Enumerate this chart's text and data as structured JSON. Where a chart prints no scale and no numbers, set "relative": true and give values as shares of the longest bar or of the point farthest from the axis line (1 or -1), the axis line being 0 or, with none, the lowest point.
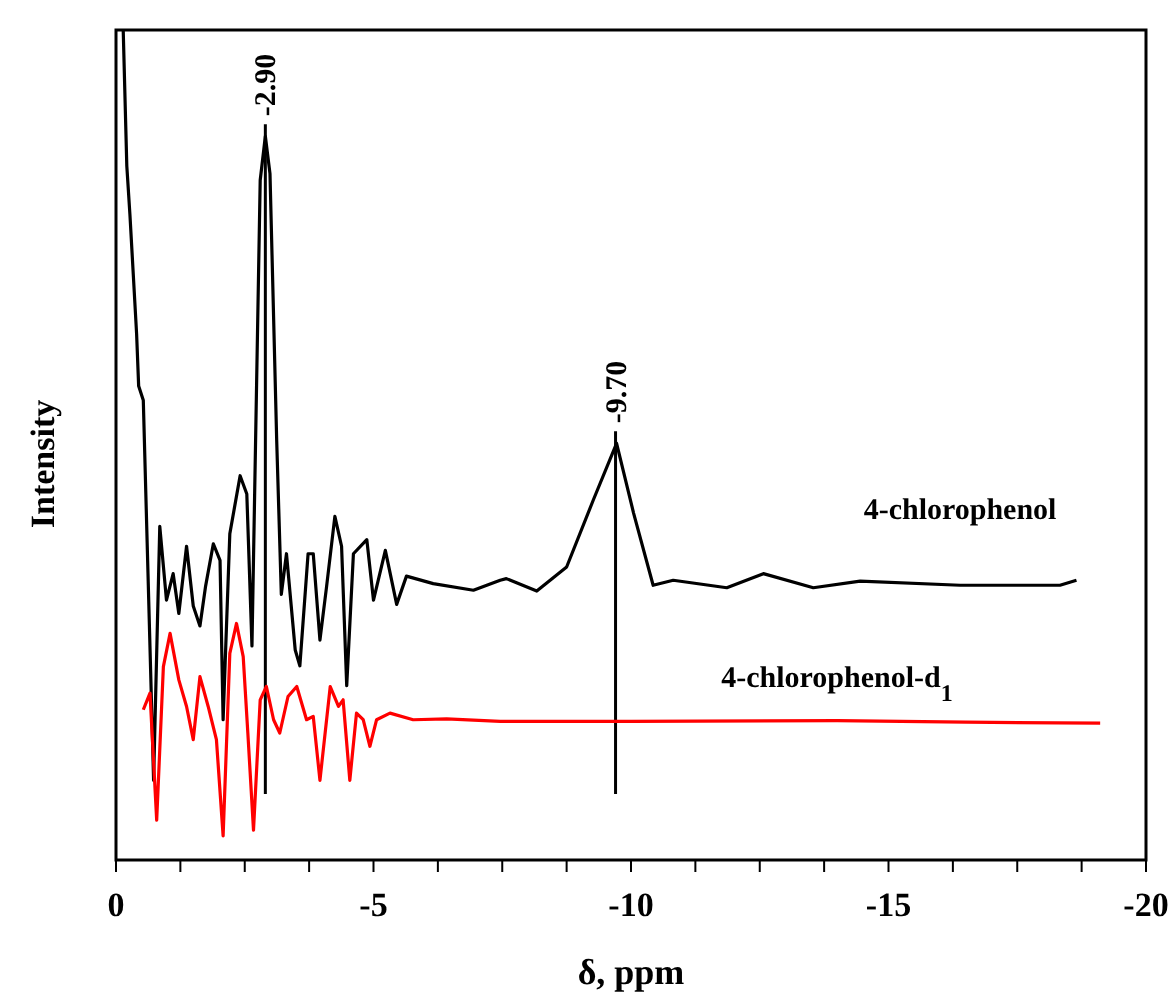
{
  "chart_data": {
    "type": "line",
    "xlabel": "δ, ppm",
    "ylabel": "Intensity",
    "relative": true,
    "xlim": [
      0,
      -20
    ],
    "xticks": [
      0,
      {
        "value": -1.25,
        "label": null
      },
      {
        "value": -2.5,
        "label": null
      },
      {
        "value": -3.75,
        "label": null
      },
      -5,
      {
        "value": -6.25,
        "label": null
      },
      {
        "value": -7.5,
        "label": null
      },
      {
        "value": -8.75,
        "label": null
      },
      -10,
      {
        "value": -11.25,
        "label": null
      },
      {
        "value": -12.5,
        "label": null
      },
      {
        "value": -13.75,
        "label": null
      },
      -15,
      {
        "value": -16.25,
        "label": null
      },
      {
        "value": -17.5,
        "label": null
      },
      {
        "value": -18.75,
        "label": null
      },
      -20
    ],
    "ref_lines": [
      {
        "axis": "x",
        "value": -2.9,
        "label": "-2.90",
        "color": "#000000"
      },
      {
        "axis": "x",
        "value": -9.7,
        "label": "-9.70",
        "color": "#000000"
      }
    ],
    "series": [
      {
        "name": "4-chlorophenol",
        "color": "#000000",
        "x": [
          -0.14,
          -0.21,
          -0.27,
          -0.4,
          -0.44,
          -0.53,
          -0.73,
          -0.85,
          -0.98,
          -1.11,
          -1.22,
          -1.37,
          -1.5,
          -1.63,
          -1.74,
          -1.89,
          -2.02,
          -2.08,
          -2.21,
          -2.41,
          -2.54,
          -2.64,
          -2.8,
          -2.9,
          -2.99,
          -3.12,
          -3.21,
          -3.31,
          -3.48,
          -3.57,
          -3.73,
          -3.83,
          -3.96,
          -4.09,
          -4.25,
          -4.38,
          -4.48,
          -4.61,
          -4.87,
          -5.0,
          -5.23,
          -5.45,
          -5.64,
          -6.16,
          -6.94,
          -7.46,
          -7.58,
          -8.17,
          -8.75,
          -9.27,
          -9.72,
          -10.05,
          -10.43,
          -10.82,
          -11.86,
          -12.57,
          -13.54,
          -14.45,
          -16.39,
          -18.33,
          -18.65
        ],
        "values": [
          1.0,
          0.836,
          0.778,
          0.634,
          0.571,
          0.554,
          0.096,
          0.402,
          0.313,
          0.345,
          0.297,
          0.378,
          0.306,
          0.282,
          0.33,
          0.381,
          0.361,
          0.169,
          0.393,
          0.463,
          0.441,
          0.258,
          0.819,
          0.872,
          0.827,
          0.506,
          0.32,
          0.369,
          0.253,
          0.234,
          0.369,
          0.369,
          0.265,
          0.33,
          0.414,
          0.378,
          0.21,
          0.369,
          0.386,
          0.313,
          0.373,
          0.308,
          0.342,
          0.333,
          0.325,
          0.337,
          0.339,
          0.324,
          0.353,
          0.434,
          0.502,
          0.418,
          0.331,
          0.337,
          0.328,
          0.345,
          0.328,
          0.336,
          0.331,
          0.331,
          0.337
        ]
      },
      {
        "name": "4-chlorophenol-d$_{1}$",
        "color": "#ff0000",
        "x": [
          -0.53,
          -0.66,
          -0.79,
          -0.92,
          -1.05,
          -1.22,
          -1.37,
          -1.5,
          -1.63,
          -1.79,
          -1.95,
          -2.08,
          -2.21,
          -2.34,
          -2.47,
          -2.56,
          -2.67,
          -2.8,
          -2.92,
          -3.06,
          -3.18,
          -3.34,
          -3.51,
          -3.7,
          -3.83,
          -3.96,
          -4.16,
          -4.32,
          -4.41,
          -4.54,
          -4.67,
          -4.8,
          -4.93,
          -5.06,
          -5.32,
          -5.77,
          -6.42,
          -7.46,
          -10.0,
          -14.0,
          -16.5,
          -19.11
        ],
        "values": [
          0.181,
          0.201,
          0.048,
          0.233,
          0.273,
          0.217,
          0.185,
          0.145,
          0.221,
          0.185,
          0.145,
          0.029,
          0.249,
          0.285,
          0.245,
          0.153,
          0.036,
          0.193,
          0.209,
          0.169,
          0.153,
          0.197,
          0.209,
          0.169,
          0.173,
          0.096,
          0.209,
          0.185,
          0.193,
          0.096,
          0.177,
          0.169,
          0.137,
          0.169,
          0.177,
          0.169,
          0.17,
          0.167,
          0.167,
          0.168,
          0.166,
          0.165
        ]
      }
    ]
  }
}
